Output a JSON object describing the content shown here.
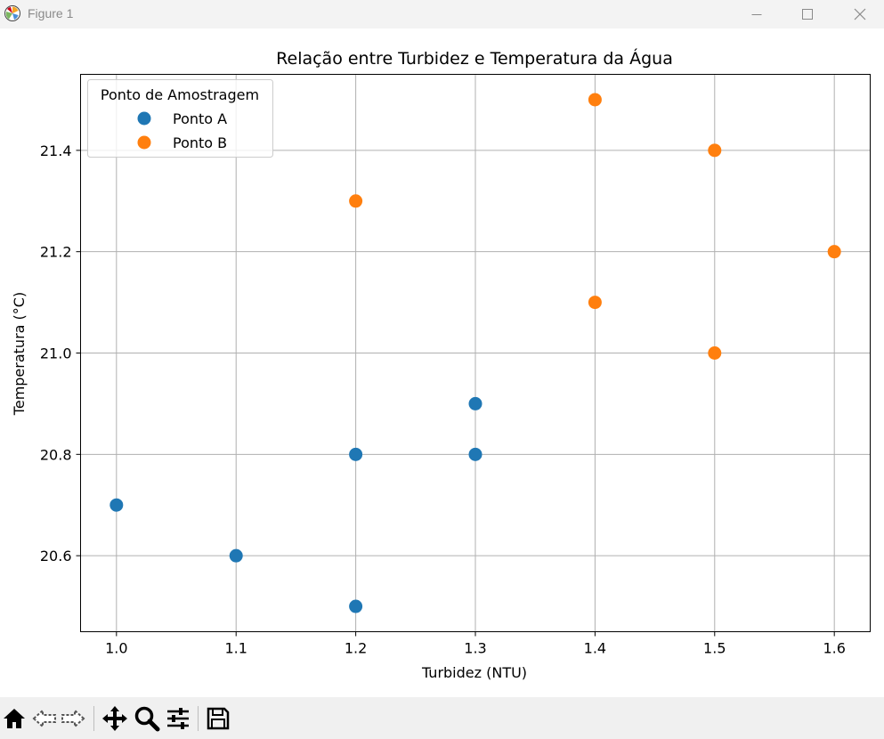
{
  "window": {
    "title": "Figure 1",
    "icons": {
      "app": "matplotlib-logo-icon",
      "minimize": "minimize-icon",
      "maximize": "maximize-icon",
      "close": "close-icon"
    }
  },
  "toolbar": {
    "buttons": [
      {
        "name": "home-icon"
      },
      {
        "name": "back-arrow-icon"
      },
      {
        "name": "forward-arrow-icon"
      },
      {
        "name": "pan-icon"
      },
      {
        "name": "zoom-icon"
      },
      {
        "name": "configure-subplots-icon"
      },
      {
        "name": "save-icon"
      }
    ]
  },
  "chart_data": {
    "type": "scatter",
    "title": "Relação entre Turbidez e Temperatura da Água",
    "xlabel": "Turbidez (NTU)",
    "ylabel": "Temperatura (°C)",
    "xlim": [
      0.97,
      1.63
    ],
    "ylim": [
      20.45,
      21.55
    ],
    "xticks": [
      1.0,
      1.1,
      1.2,
      1.3,
      1.4,
      1.5,
      1.6
    ],
    "xtick_labels": [
      "1.0",
      "1.1",
      "1.2",
      "1.3",
      "1.4",
      "1.5",
      "1.6"
    ],
    "yticks": [
      20.6,
      20.8,
      21.0,
      21.2,
      21.4
    ],
    "ytick_labels": [
      "20.6",
      "20.8",
      "21.0",
      "21.2",
      "21.4"
    ],
    "grid": true,
    "legend": {
      "title": "Ponto de Amostragem",
      "placement": "upper-left"
    },
    "series": [
      {
        "name": "Ponto A",
        "color": "#1f77b4",
        "points": [
          {
            "x": 1.0,
            "y": 20.7
          },
          {
            "x": 1.1,
            "y": 20.6
          },
          {
            "x": 1.2,
            "y": 20.5
          },
          {
            "x": 1.2,
            "y": 20.8
          },
          {
            "x": 1.3,
            "y": 20.8
          },
          {
            "x": 1.3,
            "y": 20.9
          }
        ]
      },
      {
        "name": "Ponto B",
        "color": "#ff7f0e",
        "points": [
          {
            "x": 1.2,
            "y": 21.3
          },
          {
            "x": 1.4,
            "y": 21.5
          },
          {
            "x": 1.4,
            "y": 21.1
          },
          {
            "x": 1.5,
            "y": 21.4
          },
          {
            "x": 1.5,
            "y": 21.0
          },
          {
            "x": 1.6,
            "y": 21.2
          }
        ]
      }
    ]
  }
}
